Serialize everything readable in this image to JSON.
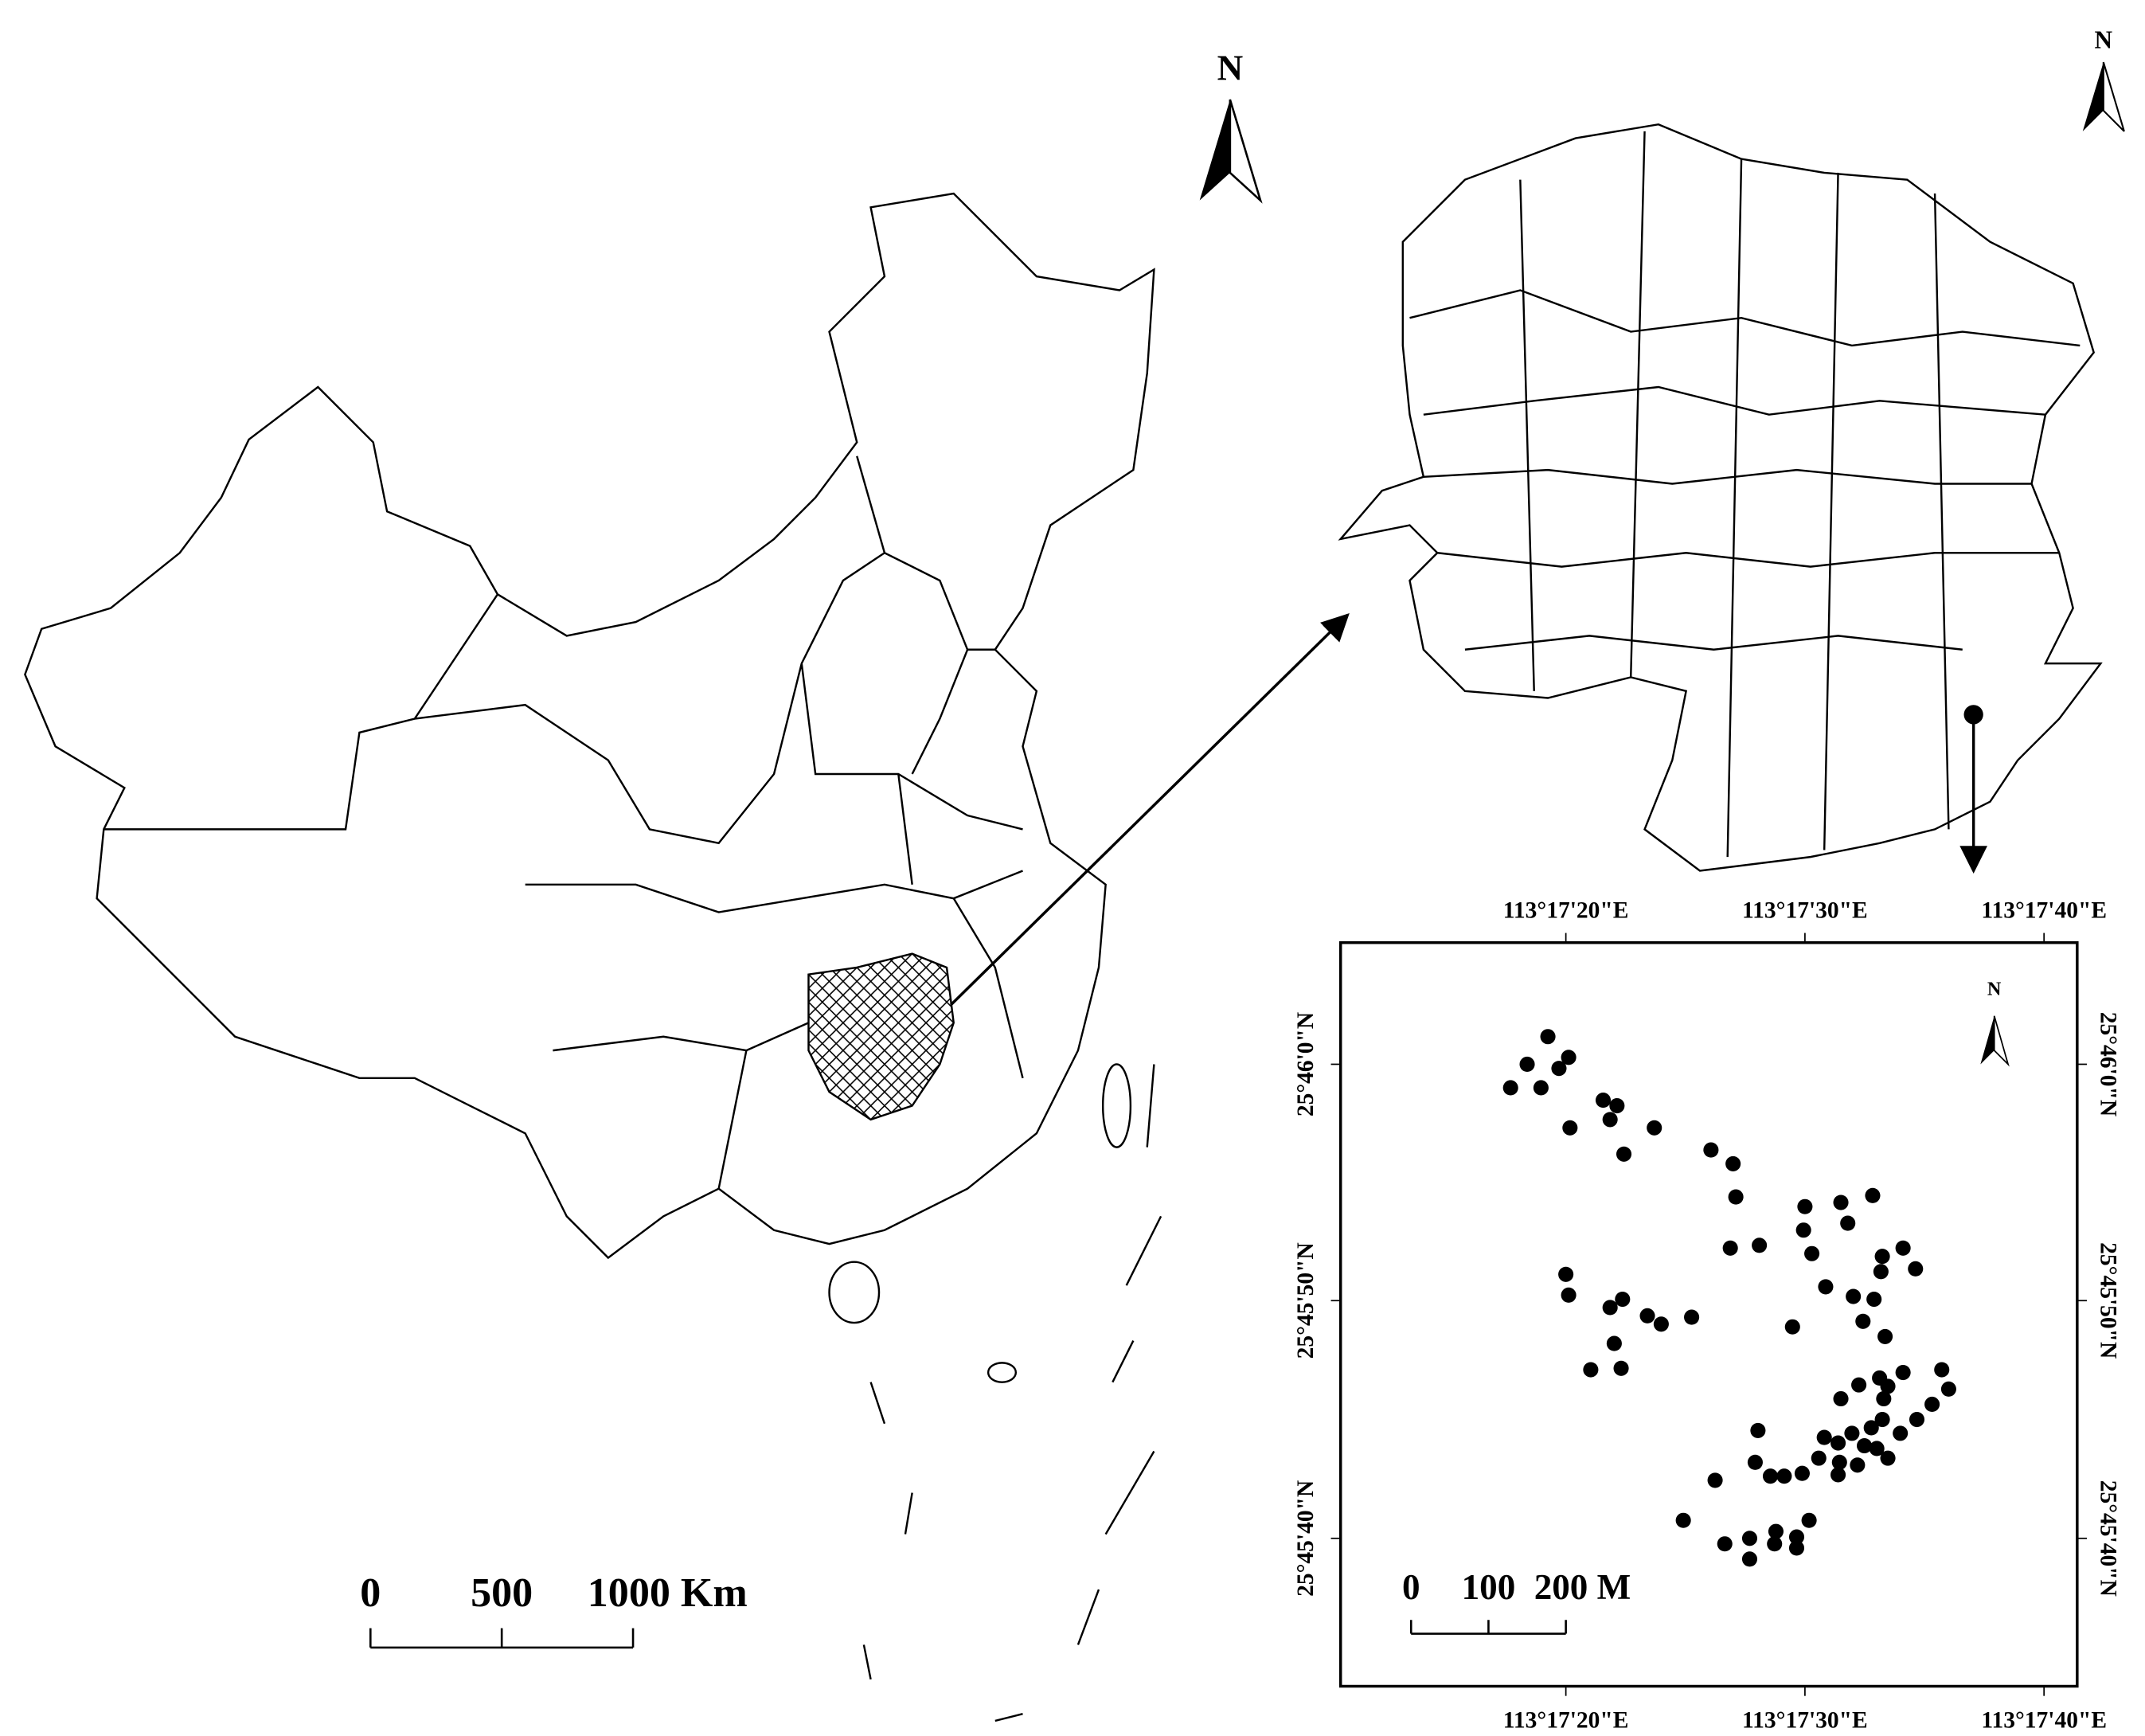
{
  "main_map": {
    "north_label": "N",
    "scale_bar": {
      "labels": [
        "0",
        "500",
        "1000 Km"
      ]
    }
  },
  "province_map": {
    "north_label": "N"
  },
  "site_map": {
    "north_label": "N",
    "top_axis_labels": [
      "113°17'20\"E",
      "113°17'30\"E",
      "113°17'40\"E"
    ],
    "bottom_axis_labels": [
      "113°17'20\"E",
      "113°17'30\"E",
      "113°17'40\"E"
    ],
    "left_axis_labels": [
      "25°46'0\"N",
      "25°45'50\"N",
      "25°45'40\"N"
    ],
    "right_axis_labels": [
      "25°46'0\"N",
      "25°45'50\"N",
      "25°45'40\"N"
    ],
    "scale_bar": {
      "labels": [
        "0",
        "100",
        "200 M"
      ]
    }
  }
}
